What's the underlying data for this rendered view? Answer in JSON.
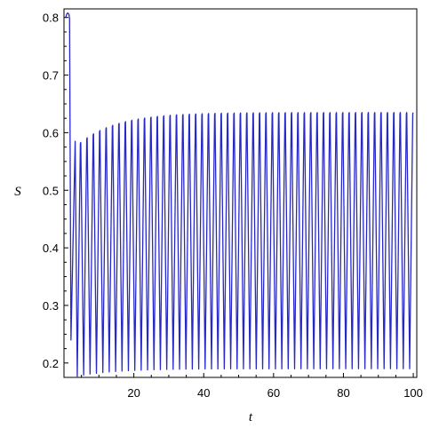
{
  "chart_data": {
    "type": "line",
    "title": "",
    "xlabel": "t",
    "ylabel": "S",
    "xlim": [
      0,
      101
    ],
    "ylim": [
      0.175,
      0.815
    ],
    "x_ticks": [
      20,
      40,
      60,
      80,
      100
    ],
    "y_ticks": [
      0.2,
      0.3,
      0.4,
      0.5,
      0.6,
      0.7,
      0.8
    ],
    "x_tick_labels": [
      "20",
      "40",
      "60",
      "80",
      "100"
    ],
    "y_tick_labels": [
      "0.2",
      "0.3",
      "0.4",
      "0.5",
      "0.6",
      "0.7",
      "0.8"
    ],
    "grid": false,
    "series": [
      {
        "color": "#2828c8",
        "description_points": [
          {
            "x": 0.5,
            "y": 0.8
          },
          {
            "x": 1.0,
            "y": 0.808
          },
          {
            "x": 1.6,
            "y": 0.8
          },
          {
            "x": 2.0,
            "y": 0.24
          },
          {
            "x": 3.2,
            "y": 0.585
          },
          {
            "x": 3.8,
            "y": 0.177
          },
          {
            "x": 5.8,
            "y": 0.583
          },
          {
            "x": 100,
            "y": 0.635
          }
        ],
        "oscillation": {
          "first_trough_t": 3.8,
          "period": 1.83,
          "peak_start": 0.583,
          "peak_end": 0.635,
          "trough_start": 0.177,
          "trough_end": 0.19,
          "settle_rate": 0.17,
          "end_t": 100.5
        }
      }
    ]
  }
}
